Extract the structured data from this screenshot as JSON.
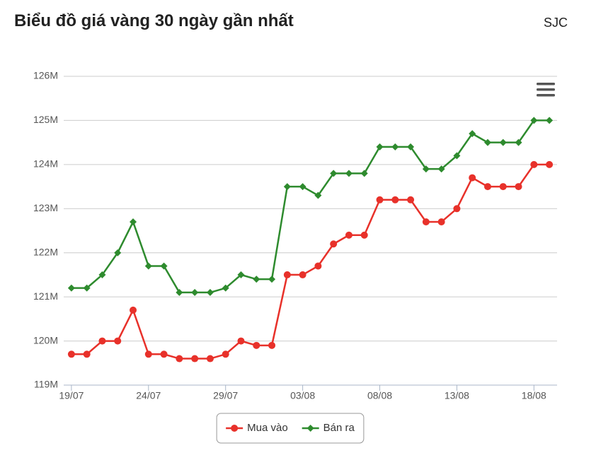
{
  "title": "Biểu đồ giá vàng 30 ngày gần nhất",
  "source": "SJC",
  "chart_data": {
    "type": "line",
    "categories": [
      "19/07",
      null,
      null,
      null,
      null,
      "24/07",
      null,
      null,
      null,
      null,
      "29/07",
      null,
      null,
      null,
      null,
      "03/08",
      null,
      null,
      null,
      null,
      "08/08",
      null,
      null,
      null,
      null,
      "13/08",
      null,
      null,
      null,
      null,
      "18/08",
      null
    ],
    "series": [
      {
        "name": "Mua vào",
        "color": "#e8312a",
        "marker": "circle",
        "values": [
          119700000,
          119700000,
          120000000,
          120000000,
          120700000,
          119700000,
          119700000,
          119600000,
          119600000,
          119600000,
          119700000,
          120000000,
          119900000,
          119900000,
          121500000,
          121500000,
          121700000,
          122200000,
          122400000,
          122400000,
          123200000,
          123200000,
          123200000,
          122700000,
          122700000,
          123000000,
          123700000,
          123500000,
          123500000,
          123500000,
          124000000,
          124000000
        ]
      },
      {
        "name": "Bán ra",
        "color": "#2e8b2e",
        "marker": "diamond",
        "values": [
          121200000,
          121200000,
          121500000,
          122000000,
          122700000,
          121700000,
          121700000,
          121100000,
          121100000,
          121100000,
          121200000,
          121500000,
          121400000,
          121400000,
          123500000,
          123500000,
          123300000,
          123800000,
          123800000,
          123800000,
          124400000,
          124400000,
          124400000,
          123900000,
          123900000,
          124200000,
          124700000,
          124500000,
          124500000,
          124500000,
          125000000,
          125000000
        ]
      }
    ],
    "ylim": [
      119000000,
      126000000
    ],
    "yticks": [
      {
        "value": 119000000,
        "label": "119M"
      },
      {
        "value": 120000000,
        "label": "120M"
      },
      {
        "value": 121000000,
        "label": "121M"
      },
      {
        "value": 122000000,
        "label": "122M"
      },
      {
        "value": 123000000,
        "label": "123M"
      },
      {
        "value": 124000000,
        "label": "124M"
      },
      {
        "value": 125000000,
        "label": "125M"
      },
      {
        "value": 126000000,
        "label": "126M"
      }
    ],
    "grid": true,
    "legend": "bottom"
  }
}
